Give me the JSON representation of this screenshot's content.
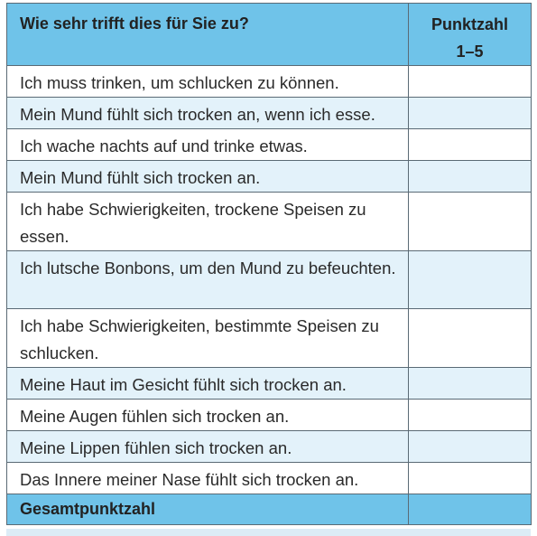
{
  "header": {
    "question": "Wie sehr trifft dies für Sie zu?",
    "score_line1": "Punktzahl",
    "score_line2": "1–5"
  },
  "rows": [
    {
      "text": "Ich muss trinken, um schlucken zu können.",
      "score": ""
    },
    {
      "text": "Mein Mund fühlt sich trocken an, wenn ich esse.",
      "score": ""
    },
    {
      "text": "Ich wache nachts auf und trinke etwas.",
      "score": ""
    },
    {
      "text": "Mein Mund fühlt sich trocken an.",
      "score": ""
    },
    {
      "text": "Ich habe Schwierigkeiten, trockene Speisen zu essen.",
      "score": ""
    },
    {
      "text": "Ich lutsche Bonbons, um den Mund zu befeuchten.",
      "score": ""
    },
    {
      "text": "Ich habe Schwierigkeiten, bestimmte Speisen zu schlucken.",
      "score": ""
    },
    {
      "text": "Meine Haut im Gesicht fühlt sich trocken an.",
      "score": ""
    },
    {
      "text": "Meine Augen fühlen sich trocken an.",
      "score": ""
    },
    {
      "text": "Meine Lippen fühlen sich trocken an.",
      "score": ""
    },
    {
      "text": "Das Innere meiner Nase fühlt sich trocken an.",
      "score": ""
    }
  ],
  "total": {
    "label": "Gesamtpunktzahl",
    "score": ""
  },
  "colors": {
    "header_bg": "#6fc3e9",
    "alt_row_bg": "#e3f2fa",
    "border": "#5a6a75"
  }
}
